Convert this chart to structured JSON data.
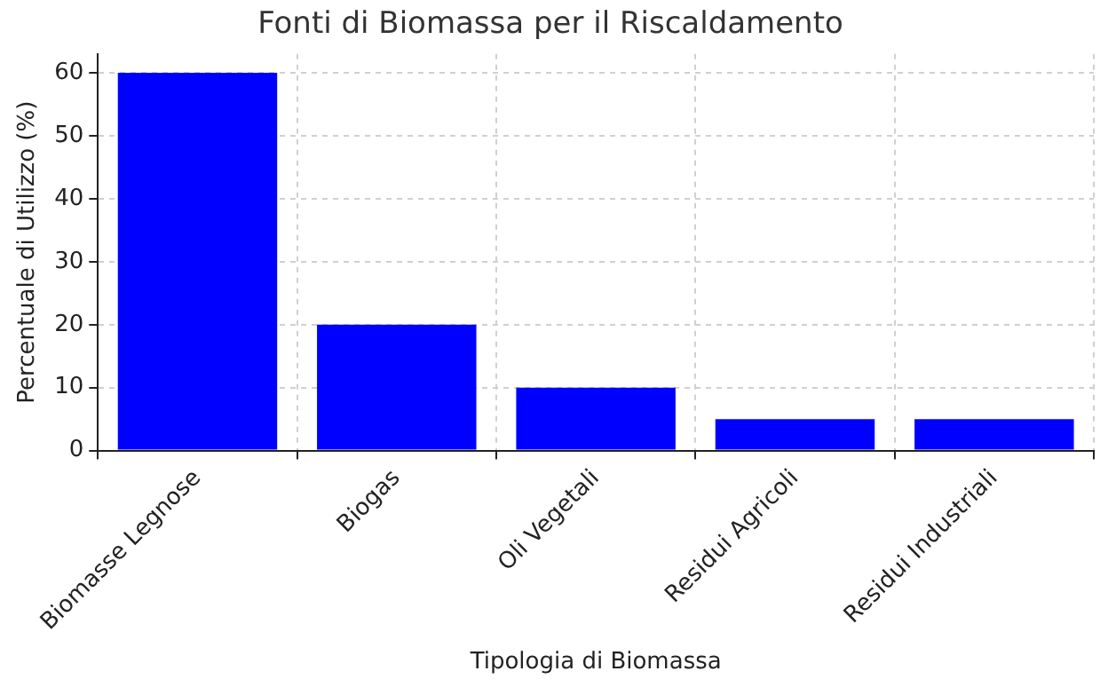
{
  "chart_data": {
    "type": "bar",
    "title": "Fonti di Biomassa per il Riscaldamento",
    "xlabel": "Tipologia di Biomassa",
    "ylabel": "Percentuale di Utilizzo (%)",
    "categories": [
      "Biomasse Legnose",
      "Biogas",
      "Oli Vegetali",
      "Residui Agricoli",
      "Residui Industriali"
    ],
    "values": [
      60,
      20,
      10,
      5,
      5
    ],
    "color": "#0000ff",
    "ylim": [
      0,
      63
    ],
    "yticks": [
      0,
      10,
      20,
      30,
      40,
      50,
      60
    ],
    "grid": true,
    "legend": false
  }
}
